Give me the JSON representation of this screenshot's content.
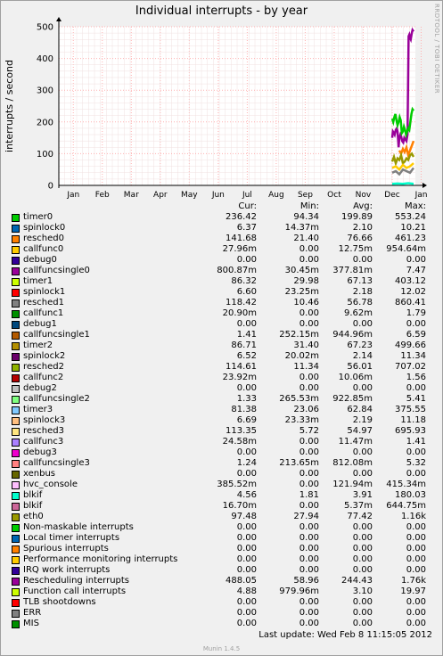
{
  "chart_data": {
    "type": "line",
    "title": "Individual interrupts - by year",
    "ylabel": "interrupts / second",
    "ylim": [
      0,
      500
    ],
    "yticks": [
      0,
      100,
      200,
      300,
      400,
      500
    ],
    "categories": [
      "Jan",
      "Feb",
      "Mar",
      "Apr",
      "May",
      "Jun",
      "Jul",
      "Aug",
      "Sep",
      "Oct",
      "Nov",
      "Dec",
      "Jan"
    ],
    "grid": true,
    "side_label": "RRDTOOL / TOBI OETIKER",
    "columns": [
      "Cur:",
      "Min:",
      "Avg:",
      "Max:"
    ],
    "series": [
      {
        "name": "timer0",
        "color": "#00cc00",
        "cur": "236.42",
        "min": "94.34",
        "avg": "199.89",
        "max": "553.24"
      },
      {
        "name": "spinlock0",
        "color": "#0066b3",
        "cur": "6.37",
        "min": "14.37m",
        "avg": "2.10",
        "max": "10.21"
      },
      {
        "name": "resched0",
        "color": "#ff8000",
        "cur": "141.68",
        "min": "21.40",
        "avg": "76.66",
        "max": "461.23"
      },
      {
        "name": "callfunc0",
        "color": "#ffcc00",
        "cur": "27.96m",
        "min": "0.00",
        "avg": "12.75m",
        "max": "954.64m"
      },
      {
        "name": "debug0",
        "color": "#330099",
        "cur": "0.00",
        "min": "0.00",
        "avg": "0.00",
        "max": "0.00"
      },
      {
        "name": "callfuncsingle0",
        "color": "#990099",
        "cur": "800.87m",
        "min": "30.45m",
        "avg": "377.81m",
        "max": "7.47"
      },
      {
        "name": "timer1",
        "color": "#ccff00",
        "cur": "86.32",
        "min": "29.98",
        "avg": "67.13",
        "max": "403.12"
      },
      {
        "name": "spinlock1",
        "color": "#ff0000",
        "cur": "6.60",
        "min": "23.25m",
        "avg": "2.18",
        "max": "12.02"
      },
      {
        "name": "resched1",
        "color": "#808080",
        "cur": "118.42",
        "min": "10.46",
        "avg": "56.78",
        "max": "860.41"
      },
      {
        "name": "callfunc1",
        "color": "#008f00",
        "cur": "20.90m",
        "min": "0.00",
        "avg": "9.62m",
        "max": "1.79"
      },
      {
        "name": "debug1",
        "color": "#00487d",
        "cur": "0.00",
        "min": "0.00",
        "avg": "0.00",
        "max": "0.00"
      },
      {
        "name": "callfuncsingle1",
        "color": "#b35a00",
        "cur": "1.41",
        "min": "252.15m",
        "avg": "944.96m",
        "max": "6.59"
      },
      {
        "name": "timer2",
        "color": "#b38f00",
        "cur": "86.71",
        "min": "31.40",
        "avg": "67.23",
        "max": "499.66"
      },
      {
        "name": "spinlock2",
        "color": "#6b006b",
        "cur": "6.52",
        "min": "20.02m",
        "avg": "2.14",
        "max": "11.34"
      },
      {
        "name": "resched2",
        "color": "#8fb300",
        "cur": "114.61",
        "min": "11.34",
        "avg": "56.01",
        "max": "707.02"
      },
      {
        "name": "callfunc2",
        "color": "#b30000",
        "cur": "23.92m",
        "min": "0.00",
        "avg": "10.06m",
        "max": "1.56"
      },
      {
        "name": "debug2",
        "color": "#bebebe",
        "cur": "0.00",
        "min": "0.00",
        "avg": "0.00",
        "max": "0.00"
      },
      {
        "name": "callfuncsingle2",
        "color": "#80ff80",
        "cur": "1.33",
        "min": "265.53m",
        "avg": "922.85m",
        "max": "5.41"
      },
      {
        "name": "timer3",
        "color": "#80c9ff",
        "cur": "81.38",
        "min": "23.06",
        "avg": "62.84",
        "max": "375.55"
      },
      {
        "name": "spinlock3",
        "color": "#ffc080",
        "cur": "6.69",
        "min": "23.33m",
        "avg": "2.19",
        "max": "11.18"
      },
      {
        "name": "resched3",
        "color": "#ffe680",
        "cur": "113.35",
        "min": "5.72",
        "avg": "54.97",
        "max": "695.93"
      },
      {
        "name": "callfunc3",
        "color": "#aa80ff",
        "cur": "24.58m",
        "min": "0.00",
        "avg": "11.47m",
        "max": "1.41"
      },
      {
        "name": "debug3",
        "color": "#ee00cc",
        "cur": "0.00",
        "min": "0.00",
        "avg": "0.00",
        "max": "0.00"
      },
      {
        "name": "callfuncsingle3",
        "color": "#ff8080",
        "cur": "1.24",
        "min": "213.65m",
        "avg": "812.08m",
        "max": "5.32"
      },
      {
        "name": "xenbus",
        "color": "#666600",
        "cur": "0.00",
        "min": "0.00",
        "avg": "0.00",
        "max": "0.00"
      },
      {
        "name": "hvc_console",
        "color": "#ffbfff",
        "cur": "385.52m",
        "min": "0.00",
        "avg": "121.94m",
        "max": "415.34m"
      },
      {
        "name": "blkif",
        "color": "#00ffcc",
        "cur": "4.56",
        "min": "1.81",
        "avg": "3.91",
        "max": "180.03"
      },
      {
        "name": "blkif",
        "color": "#cc6699",
        "cur": "16.70m",
        "min": "0.00",
        "avg": "5.37m",
        "max": "644.75m"
      },
      {
        "name": "eth0",
        "color": "#999900",
        "cur": "97.48",
        "min": "27.94",
        "avg": "77.42",
        "max": "1.16k"
      },
      {
        "name": "Non-maskable interrupts",
        "color": "#00cc00",
        "cur": "0.00",
        "min": "0.00",
        "avg": "0.00",
        "max": "0.00"
      },
      {
        "name": "Local timer interrupts",
        "color": "#0066b3",
        "cur": "0.00",
        "min": "0.00",
        "avg": "0.00",
        "max": "0.00"
      },
      {
        "name": "Spurious interrupts",
        "color": "#ff8000",
        "cur": "0.00",
        "min": "0.00",
        "avg": "0.00",
        "max": "0.00"
      },
      {
        "name": "Performance monitoring interrupts",
        "color": "#ffcc00",
        "cur": "0.00",
        "min": "0.00",
        "avg": "0.00",
        "max": "0.00"
      },
      {
        "name": "IRQ work interrupts",
        "color": "#330099",
        "cur": "0.00",
        "min": "0.00",
        "avg": "0.00",
        "max": "0.00"
      },
      {
        "name": "Rescheduling interrupts",
        "color": "#990099",
        "cur": "488.05",
        "min": "58.96",
        "avg": "244.43",
        "max": "1.76k"
      },
      {
        "name": "Function call interrupts",
        "color": "#ccff00",
        "cur": "4.88",
        "min": "979.96m",
        "avg": "3.10",
        "max": "19.97"
      },
      {
        "name": "TLB shootdowns",
        "color": "#ff0000",
        "cur": "0.00",
        "min": "0.00",
        "avg": "0.00",
        "max": "0.00"
      },
      {
        "name": "ERR",
        "color": "#808080",
        "cur": "0.00",
        "min": "0.00",
        "avg": "0.00",
        "max": "0.00"
      },
      {
        "name": "MIS",
        "color": "#008f00",
        "cur": "0.00",
        "min": "0.00",
        "avg": "0.00",
        "max": "0.00"
      }
    ],
    "plotted": [
      {
        "color": "#990099",
        "x": [
          0.935,
          0.937,
          0.94,
          0.942,
          0.945,
          0.948,
          0.95,
          0.953,
          0.955,
          0.958,
          0.96,
          0.963,
          0.966,
          0.969,
          0.972,
          0.975,
          0.978,
          0.981,
          0.983,
          0.985,
          0.987,
          0.99,
          0.992,
          0.995
        ],
        "y": [
          150,
          170,
          165,
          160,
          175,
          180,
          170,
          120,
          150,
          160,
          155,
          140,
          135,
          150,
          145,
          140,
          160,
          470,
          475,
          465,
          460,
          480,
          490,
          485
        ]
      },
      {
        "color": "#00cc00",
        "x": [
          0.935,
          0.938,
          0.941,
          0.944,
          0.947,
          0.95,
          0.953,
          0.956,
          0.959,
          0.962,
          0.965,
          0.968,
          0.971,
          0.974,
          0.977,
          0.98,
          0.983,
          0.986,
          0.989,
          0.992,
          0.995
        ],
        "y": [
          210,
          200,
          215,
          225,
          205,
          190,
          200,
          215,
          205,
          165,
          170,
          185,
          175,
          160,
          170,
          180,
          175,
          200,
          225,
          240,
          235
        ]
      },
      {
        "color": "#ff8000",
        "x": [
          0.955,
          0.96,
          0.965,
          0.97,
          0.975,
          0.98,
          0.985,
          0.99,
          0.995
        ],
        "y": [
          110,
          100,
          115,
          105,
          120,
          95,
          110,
          125,
          140
        ]
      },
      {
        "color": "#999900",
        "x": [
          0.935,
          0.94,
          0.945,
          0.95,
          0.955,
          0.96,
          0.965,
          0.97,
          0.975,
          0.98,
          0.985,
          0.99,
          0.995
        ],
        "y": [
          75,
          90,
          70,
          85,
          80,
          95,
          70,
          75,
          85,
          80,
          95,
          100,
          90
        ]
      },
      {
        "color": "#ffcc00",
        "x": [
          0.935,
          0.945,
          0.955,
          0.965,
          0.975,
          0.985,
          0.995
        ],
        "y": [
          55,
          60,
          50,
          65,
          55,
          60,
          70
        ]
      },
      {
        "color": "#808080",
        "x": [
          0.935,
          0.945,
          0.955,
          0.965,
          0.975,
          0.985,
          0.995
        ],
        "y": [
          40,
          45,
          35,
          50,
          45,
          40,
          55
        ]
      },
      {
        "color": "#00ffcc",
        "x": [
          0.935,
          0.95,
          0.965,
          0.98,
          0.995
        ],
        "y": [
          5,
          6,
          5,
          7,
          5
        ]
      }
    ]
  },
  "footer": {
    "last_update": "Last update:  Wed Feb  8 11:15:05 2012",
    "munin_version": "Munin 1.4.5"
  }
}
